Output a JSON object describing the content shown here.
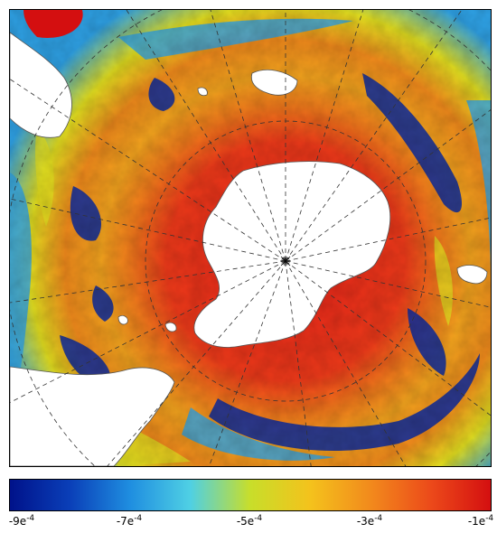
{
  "map": {
    "projection": "south-polar-stereographic",
    "field_colors": {
      "high": "#e8201a",
      "mid_high": "#f26a1c",
      "mid": "#f2a31e",
      "mid_low": "#e3df20",
      "low_mid": "#2fa2e6",
      "low": "#0a2aa0",
      "land": "#ffffff",
      "coast": "#555555"
    }
  },
  "colorbar": {
    "stops": [
      "#00128a",
      "#0a3fb8",
      "#1f8ee0",
      "#4fd0e4",
      "#c8de2a",
      "#f4c21c",
      "#f28a1c",
      "#ec4a1a",
      "#d40f10"
    ],
    "ticks": [
      {
        "base": "-9e",
        "exp": "-4",
        "pos": 0.0
      },
      {
        "base": "-7e",
        "exp": "-4",
        "pos": 0.25
      },
      {
        "base": "-5e",
        "exp": "-4",
        "pos": 0.5
      },
      {
        "base": "-3e",
        "exp": "-4",
        "pos": 0.75
      },
      {
        "base": "-1e",
        "exp": "-4",
        "pos": 1.0
      }
    ]
  }
}
